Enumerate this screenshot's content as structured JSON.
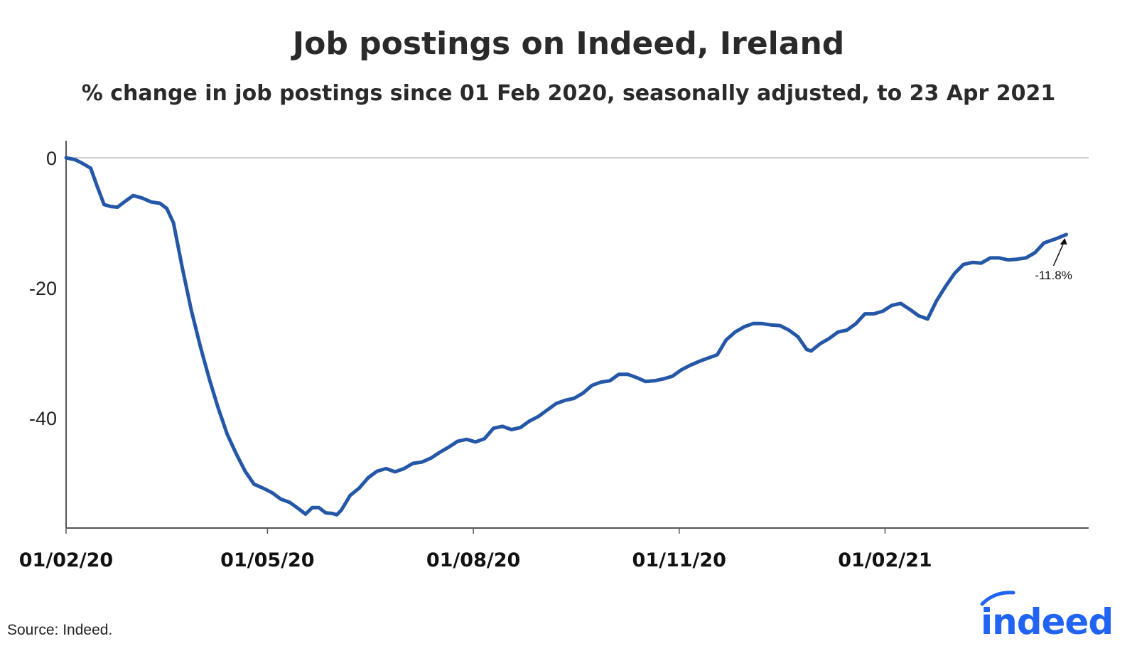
{
  "chart_data": {
    "type": "line",
    "title": "Job postings on Indeed, Ireland",
    "subtitle": "% change in job postings since 01 Feb 2020, seasonally adjusted, to 23 Apr 2021",
    "xlabel": "",
    "ylabel": "",
    "x_tick_labels": [
      "01/02/20",
      "01/05/20",
      "01/08/20",
      "01/11/20",
      "01/02/21"
    ],
    "x_tick_dates": [
      "2020-02-01",
      "2020-05-01",
      "2020-08-01",
      "2020-11-01",
      "2021-02-01"
    ],
    "y_ticks": [
      0,
      -20,
      -40
    ],
    "ylim": [
      -57,
      2.5
    ],
    "xlim": [
      "2020-02-01",
      "2021-05-03"
    ],
    "grid": "zero line only",
    "legend": "none",
    "series": [
      {
        "color": "#2557a7",
        "points": [
          [
            "2020-02-01",
            0.0
          ],
          [
            "2020-02-05",
            -0.3
          ],
          [
            "2020-02-08",
            -0.8
          ],
          [
            "2020-02-12",
            -1.6
          ],
          [
            "2020-02-15",
            -4.5
          ],
          [
            "2020-02-18",
            -7.2
          ],
          [
            "2020-02-21",
            -7.5
          ],
          [
            "2020-02-24",
            -7.6
          ],
          [
            "2020-02-27",
            -6.8
          ],
          [
            "2020-03-02",
            -5.8
          ],
          [
            "2020-03-06",
            -6.2
          ],
          [
            "2020-03-10",
            -6.8
          ],
          [
            "2020-03-14",
            -7.0
          ],
          [
            "2020-03-17",
            -7.8
          ],
          [
            "2020-03-20",
            -10.0
          ],
          [
            "2020-03-24",
            -17.0
          ],
          [
            "2020-03-28",
            -23.5
          ],
          [
            "2020-04-01",
            -29.0
          ],
          [
            "2020-04-05",
            -34.0
          ],
          [
            "2020-04-09",
            -38.5
          ],
          [
            "2020-04-13",
            -42.5
          ],
          [
            "2020-04-17",
            -45.5
          ],
          [
            "2020-04-21",
            -48.2
          ],
          [
            "2020-04-25",
            -50.2
          ],
          [
            "2020-04-29",
            -50.8
          ],
          [
            "2020-05-03",
            -51.5
          ],
          [
            "2020-05-07",
            -52.5
          ],
          [
            "2020-05-11",
            -53.0
          ],
          [
            "2020-05-15",
            -54.0
          ],
          [
            "2020-05-18",
            -54.8
          ],
          [
            "2020-05-21",
            -53.8
          ],
          [
            "2020-05-24",
            -53.8
          ],
          [
            "2020-05-27",
            -54.6
          ],
          [
            "2020-05-30",
            -54.7
          ],
          [
            "2020-06-01",
            -54.9
          ],
          [
            "2020-06-03",
            -54.2
          ],
          [
            "2020-06-07",
            -51.9
          ],
          [
            "2020-06-11",
            -50.8
          ],
          [
            "2020-06-15",
            -49.2
          ],
          [
            "2020-06-19",
            -48.2
          ],
          [
            "2020-06-23",
            -47.8
          ],
          [
            "2020-06-27",
            -48.3
          ],
          [
            "2020-07-01",
            -47.8
          ],
          [
            "2020-07-05",
            -47.0
          ],
          [
            "2020-07-09",
            -46.8
          ],
          [
            "2020-07-13",
            -46.2
          ],
          [
            "2020-07-17",
            -45.3
          ],
          [
            "2020-07-21",
            -44.5
          ],
          [
            "2020-07-25",
            -43.6
          ],
          [
            "2020-07-29",
            -43.3
          ],
          [
            "2020-08-02",
            -43.7
          ],
          [
            "2020-08-06",
            -43.2
          ],
          [
            "2020-08-10",
            -41.6
          ],
          [
            "2020-08-14",
            -41.3
          ],
          [
            "2020-08-18",
            -41.8
          ],
          [
            "2020-08-22",
            -41.5
          ],
          [
            "2020-08-26",
            -40.5
          ],
          [
            "2020-08-30",
            -39.8
          ],
          [
            "2020-09-03",
            -38.8
          ],
          [
            "2020-09-07",
            -37.8
          ],
          [
            "2020-09-11",
            -37.3
          ],
          [
            "2020-09-15",
            -37.0
          ],
          [
            "2020-09-19",
            -36.2
          ],
          [
            "2020-09-23",
            -35.0
          ],
          [
            "2020-09-27",
            -34.5
          ],
          [
            "2020-10-01",
            -34.3
          ],
          [
            "2020-10-05",
            -33.3
          ],
          [
            "2020-10-09",
            -33.3
          ],
          [
            "2020-10-13",
            -33.8
          ],
          [
            "2020-10-17",
            -34.4
          ],
          [
            "2020-10-21",
            -34.3
          ],
          [
            "2020-10-25",
            -34.0
          ],
          [
            "2020-10-29",
            -33.6
          ],
          [
            "2020-11-02",
            -32.6
          ],
          [
            "2020-11-06",
            -31.9
          ],
          [
            "2020-11-10",
            -31.3
          ],
          [
            "2020-11-14",
            -30.8
          ],
          [
            "2020-11-18",
            -30.3
          ],
          [
            "2020-11-22",
            -28.0
          ],
          [
            "2020-11-26",
            -26.8
          ],
          [
            "2020-11-30",
            -26.0
          ],
          [
            "2020-12-04",
            -25.5
          ],
          [
            "2020-12-08",
            -25.5
          ],
          [
            "2020-12-12",
            -25.7
          ],
          [
            "2020-12-16",
            -25.8
          ],
          [
            "2020-12-20",
            -26.5
          ],
          [
            "2020-12-24",
            -27.5
          ],
          [
            "2020-12-28",
            -29.5
          ],
          [
            "2020-12-30",
            -29.7
          ],
          [
            "2021-01-03",
            -28.6
          ],
          [
            "2021-01-07",
            -27.8
          ],
          [
            "2021-01-11",
            -26.8
          ],
          [
            "2021-01-15",
            -26.5
          ],
          [
            "2021-01-19",
            -25.5
          ],
          [
            "2021-01-23",
            -24.0
          ],
          [
            "2021-01-27",
            -24.0
          ],
          [
            "2021-01-31",
            -23.6
          ],
          [
            "2021-02-04",
            -22.7
          ],
          [
            "2021-02-08",
            -22.4
          ],
          [
            "2021-02-12",
            -23.3
          ],
          [
            "2021-02-16",
            -24.3
          ],
          [
            "2021-02-20",
            -24.8
          ],
          [
            "2021-02-24",
            -22.0
          ],
          [
            "2021-02-28",
            -19.8
          ],
          [
            "2021-03-04",
            -17.8
          ],
          [
            "2021-03-08",
            -16.4
          ],
          [
            "2021-03-12",
            -16.1
          ],
          [
            "2021-03-16",
            -16.2
          ],
          [
            "2021-03-20",
            -15.4
          ],
          [
            "2021-03-24",
            -15.4
          ],
          [
            "2021-03-28",
            -15.7
          ],
          [
            "2021-04-01",
            -15.6
          ],
          [
            "2021-04-05",
            -15.4
          ],
          [
            "2021-04-09",
            -14.6
          ],
          [
            "2021-04-13",
            -13.1
          ],
          [
            "2021-04-18",
            -12.5
          ],
          [
            "2021-04-23",
            -11.8
          ]
        ]
      }
    ],
    "annotations": [
      {
        "text": "-11.8%",
        "date": "2021-04-23",
        "value": -11.8,
        "position": "below-left with arrow"
      }
    ],
    "source": "Source: Indeed.",
    "logo": {
      "name": "indeed-logo",
      "text": "indeed",
      "color": "#2164f3"
    }
  }
}
